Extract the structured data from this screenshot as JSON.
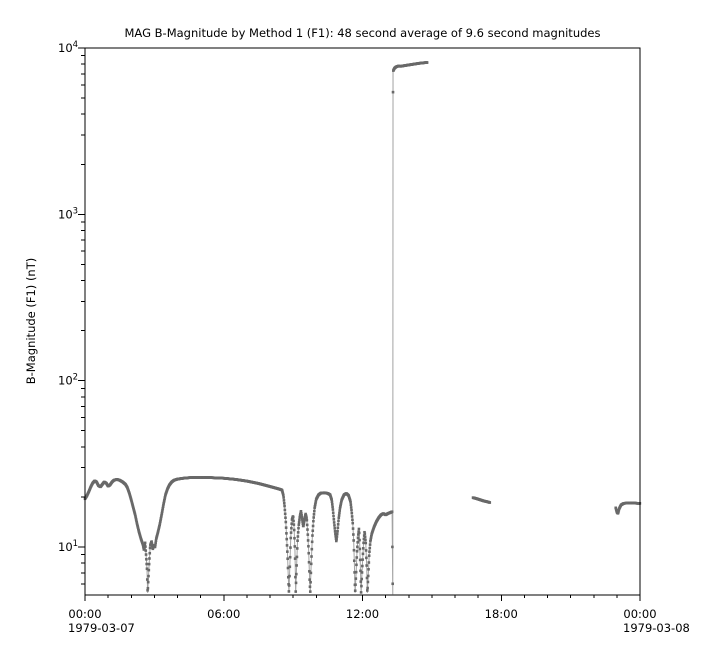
{
  "chart_data": {
    "type": "line",
    "title": "MAG  B-Magnitude by Method 1 (F1): 48 second average of 9.6 second magnitudes",
    "ylabel": "B-Magnitude (F1) (nT)",
    "yscale": "log",
    "ylim": [
      5.15,
      10000
    ],
    "xlim_hours": [
      0,
      24
    ],
    "grid": false,
    "legend": false,
    "sample_hours": 0.0134,
    "marker": "square",
    "marker_size_px": 2.6,
    "colors": {
      "marker": "#696969",
      "line": "#a2a2a2",
      "axis": "#000000",
      "background": "#ffffff"
    },
    "y_ticks": [
      {
        "exp": 1,
        "label_base": "10",
        "label_exp": "1"
      },
      {
        "exp": 2,
        "label_base": "10",
        "label_exp": "2"
      },
      {
        "exp": 3,
        "label_base": "10",
        "label_exp": "3"
      },
      {
        "exp": 4,
        "label_base": "10",
        "label_exp": "4"
      }
    ],
    "x_ticks": [
      {
        "hours": 0,
        "label": "00:00"
      },
      {
        "hours": 6,
        "label": "06:00"
      },
      {
        "hours": 12,
        "label": "12:00"
      },
      {
        "hours": 18,
        "label": "18:00"
      },
      {
        "hours": 24,
        "label": "00:00"
      }
    ],
    "x_minor_every_hours": 1,
    "x_dates": [
      {
        "hours": 0,
        "label": "1979-03-07"
      },
      {
        "hours": 24,
        "label": "1979-03-08"
      }
    ],
    "segments": [
      {
        "name": "main-trace-with-jump",
        "points": [
          [
            0.0,
            19.5
          ],
          [
            0.08,
            20.3
          ],
          [
            0.17,
            21.6
          ],
          [
            0.25,
            23.0
          ],
          [
            0.33,
            24.2
          ],
          [
            0.42,
            25.0
          ],
          [
            0.5,
            24.6
          ],
          [
            0.58,
            23.4
          ],
          [
            0.67,
            23.0
          ],
          [
            0.75,
            23.8
          ],
          [
            0.83,
            24.6
          ],
          [
            0.92,
            24.2
          ],
          [
            1.0,
            23.2
          ],
          [
            1.08,
            23.6
          ],
          [
            1.17,
            24.6
          ],
          [
            1.25,
            25.2
          ],
          [
            1.38,
            25.5
          ],
          [
            1.5,
            25.2
          ],
          [
            1.63,
            24.6
          ],
          [
            1.75,
            23.8
          ],
          [
            1.83,
            22.8
          ],
          [
            1.92,
            21.0
          ],
          [
            2.0,
            19.2
          ],
          [
            2.08,
            17.4
          ],
          [
            2.17,
            15.6
          ],
          [
            2.25,
            13.8
          ],
          [
            2.33,
            12.4
          ],
          [
            2.42,
            11.2
          ],
          [
            2.5,
            10.4
          ],
          [
            2.55,
            9.6
          ],
          [
            2.6,
            10.6
          ],
          [
            2.64,
            9.0
          ],
          [
            2.68,
            7.4
          ],
          [
            2.71,
            5.3
          ],
          [
            2.74,
            6.4
          ],
          [
            2.78,
            8.2
          ],
          [
            2.82,
            10.2
          ],
          [
            2.88,
            10.8
          ],
          [
            2.93,
            9.7
          ],
          [
            2.98,
            10.3
          ],
          [
            3.03,
            10.0
          ],
          [
            3.08,
            11.2
          ],
          [
            3.15,
            12.2
          ],
          [
            3.23,
            13.6
          ],
          [
            3.32,
            15.8
          ],
          [
            3.4,
            18.2
          ],
          [
            3.48,
            20.6
          ],
          [
            3.57,
            22.4
          ],
          [
            3.65,
            23.6
          ],
          [
            3.75,
            24.6
          ],
          [
            3.85,
            25.2
          ],
          [
            4.0,
            25.6
          ],
          [
            4.25,
            25.9
          ],
          [
            4.5,
            26.1
          ],
          [
            4.75,
            26.2
          ],
          [
            5.0,
            26.2
          ],
          [
            5.25,
            26.2
          ],
          [
            5.5,
            26.1
          ],
          [
            5.75,
            26.0
          ],
          [
            6.0,
            25.9
          ],
          [
            6.25,
            25.7
          ],
          [
            6.5,
            25.5
          ],
          [
            6.75,
            25.2
          ],
          [
            7.0,
            24.9
          ],
          [
            7.25,
            24.5
          ],
          [
            7.5,
            24.1
          ],
          [
            7.75,
            23.6
          ],
          [
            8.0,
            23.1
          ],
          [
            8.2,
            22.7
          ],
          [
            8.4,
            22.3
          ],
          [
            8.52,
            22.0
          ],
          [
            8.58,
            20.4
          ],
          [
            8.63,
            17.6
          ],
          [
            8.68,
            14.4
          ],
          [
            8.72,
            11.4
          ],
          [
            8.76,
            8.8
          ],
          [
            8.79,
            6.6
          ],
          [
            8.82,
            5.3
          ],
          [
            8.86,
            7.8
          ],
          [
            8.9,
            11.6
          ],
          [
            8.95,
            14.6
          ],
          [
            9.0,
            15.4
          ],
          [
            9.04,
            13.2
          ],
          [
            9.08,
            9.4
          ],
          [
            9.11,
            5.3
          ],
          [
            9.15,
            7.6
          ],
          [
            9.19,
            10.8
          ],
          [
            9.24,
            13.4
          ],
          [
            9.29,
            15.2
          ],
          [
            9.34,
            16.4
          ],
          [
            9.39,
            14.8
          ],
          [
            9.44,
            13.2
          ],
          [
            9.49,
            14.6
          ],
          [
            9.54,
            15.8
          ],
          [
            9.59,
            14.8
          ],
          [
            9.63,
            12.2
          ],
          [
            9.67,
            9.6
          ],
          [
            9.71,
            6.6
          ],
          [
            9.74,
            5.3
          ],
          [
            9.78,
            7.8
          ],
          [
            9.83,
            11.4
          ],
          [
            9.88,
            14.6
          ],
          [
            9.93,
            17.2
          ],
          [
            10.0,
            19.4
          ],
          [
            10.1,
            20.6
          ],
          [
            10.2,
            21.1
          ],
          [
            10.35,
            21.2
          ],
          [
            10.5,
            21.0
          ],
          [
            10.6,
            20.6
          ],
          [
            10.67,
            19.2
          ],
          [
            10.72,
            16.8
          ],
          [
            10.77,
            14.2
          ],
          [
            10.82,
            12.2
          ],
          [
            10.87,
            10.8
          ],
          [
            10.92,
            12.4
          ],
          [
            10.97,
            14.8
          ],
          [
            11.03,
            17.2
          ],
          [
            11.1,
            19.2
          ],
          [
            11.2,
            20.6
          ],
          [
            11.3,
            21.0
          ],
          [
            11.4,
            20.4
          ],
          [
            11.48,
            18.8
          ],
          [
            11.53,
            16.4
          ],
          [
            11.58,
            13.8
          ],
          [
            11.62,
            10.8
          ],
          [
            11.65,
            7.8
          ],
          [
            11.68,
            5.3
          ],
          [
            11.72,
            6.8
          ],
          [
            11.76,
            9.2
          ],
          [
            11.81,
            11.6
          ],
          [
            11.85,
            13.0
          ],
          [
            11.88,
            10.4
          ],
          [
            11.91,
            7.4
          ],
          [
            11.94,
            5.3
          ],
          [
            11.97,
            6.6
          ],
          [
            12.01,
            8.6
          ],
          [
            12.05,
            10.8
          ],
          [
            12.09,
            12.4
          ],
          [
            12.14,
            10.6
          ],
          [
            12.18,
            7.8
          ],
          [
            12.21,
            5.3
          ],
          [
            12.25,
            6.8
          ],
          [
            12.29,
            9.0
          ],
          [
            12.34,
            10.8
          ],
          [
            12.4,
            12.0
          ],
          [
            12.5,
            13.2
          ],
          [
            12.6,
            14.2
          ],
          [
            12.7,
            15.0
          ],
          [
            12.8,
            15.6
          ],
          [
            12.9,
            15.9
          ],
          [
            13.0,
            15.6
          ],
          [
            13.1,
            15.9
          ],
          [
            13.2,
            16.1
          ],
          [
            13.28,
            16.3
          ],
          [
            13.31,
            5.2
          ],
          [
            13.32,
            7250
          ],
          [
            13.38,
            7550
          ],
          [
            13.45,
            7700
          ],
          [
            13.55,
            7790
          ],
          [
            13.65,
            7760
          ],
          [
            13.8,
            7830
          ],
          [
            14.0,
            7910
          ],
          [
            14.2,
            7990
          ],
          [
            14.45,
            8090
          ],
          [
            14.65,
            8150
          ],
          [
            14.8,
            8180
          ]
        ]
      },
      {
        "name": "segment-17h",
        "points": [
          [
            16.78,
            19.8
          ],
          [
            16.95,
            19.5
          ],
          [
            17.1,
            19.2
          ],
          [
            17.25,
            18.9
          ],
          [
            17.4,
            18.7
          ],
          [
            17.51,
            18.5
          ]
        ]
      },
      {
        "name": "segment-23h",
        "points": [
          [
            22.95,
            17.2
          ],
          [
            23.0,
            16.2
          ],
          [
            23.05,
            15.9
          ],
          [
            23.1,
            17.0
          ],
          [
            23.18,
            17.9
          ],
          [
            23.3,
            18.3
          ],
          [
            23.5,
            18.4
          ],
          [
            23.7,
            18.4
          ],
          [
            23.9,
            18.3
          ],
          [
            24.0,
            18.3
          ]
        ]
      }
    ]
  }
}
